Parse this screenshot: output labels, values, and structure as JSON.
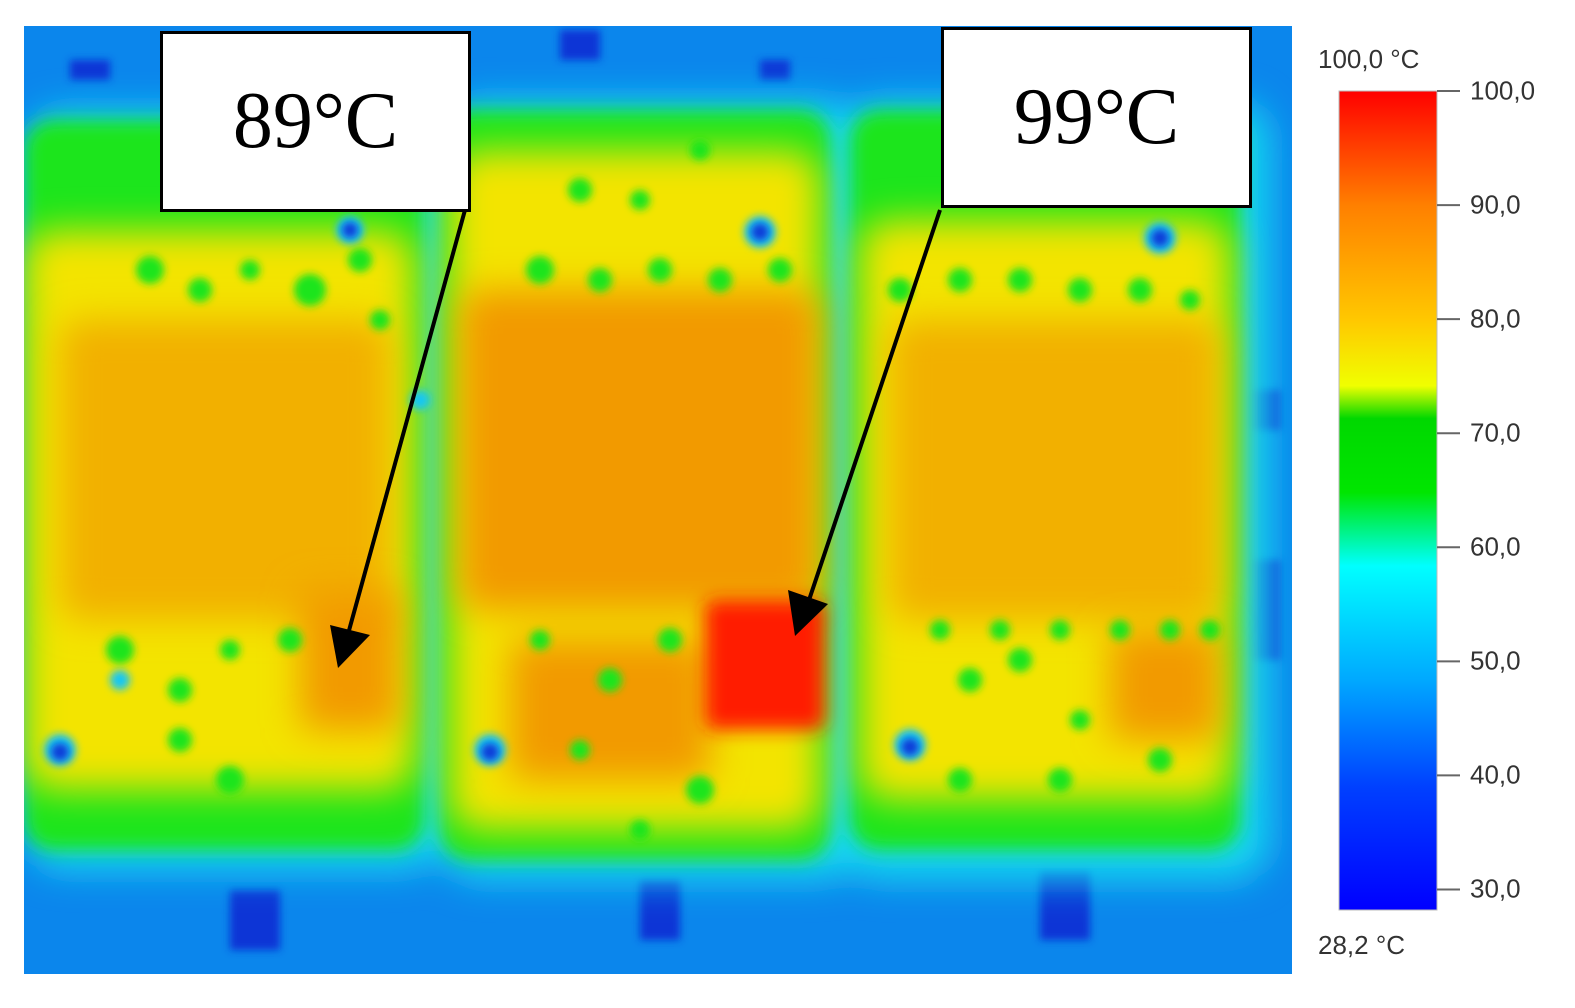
{
  "annotations": [
    {
      "label": "89°C"
    },
    {
      "label": "99°C"
    }
  ],
  "colorbar": {
    "max_label": "100,0 °C",
    "min_label": "28,2 °C",
    "min_value": 28.2,
    "max_value": 100.0,
    "ticks": [
      "100,0",
      "90,0",
      "80,0",
      "70,0",
      "60,0",
      "50,0",
      "40,0",
      "30,0"
    ],
    "tick_values": [
      100,
      90,
      80,
      70,
      60,
      50,
      40,
      30
    ],
    "gradient_stops": [
      "#ff0000",
      "#ff8000",
      "#ffc800",
      "#f0ff00",
      "#00e000",
      "#00ffff",
      "#00a0ff",
      "#0000ff"
    ]
  },
  "palette": {
    "background_blue": "#0a7fe8",
    "edge_cyan": "#13d4f0",
    "green": "#18e418",
    "yellow": "#f2e400",
    "orange": "#f2a300",
    "hot_red": "#ff1a00",
    "cold_blue": "#0f39d8"
  }
}
